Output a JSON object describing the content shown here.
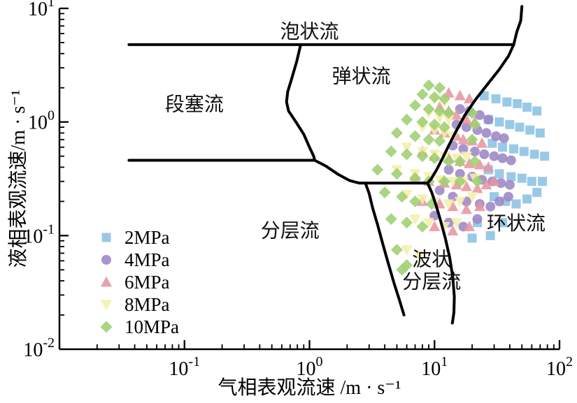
{
  "figure": {
    "background": "#ffffff"
  },
  "chart_data": {
    "type": "scatter",
    "title": "",
    "xlabel": "气相表观流速 /m · s⁻¹",
    "ylabel": "液相表观流速/m · s⁻¹",
    "x_scale": "log",
    "y_scale": "log",
    "xlim": [
      0.01,
      100
    ],
    "ylim": [
      0.01,
      10
    ],
    "x_ticks": [
      "10⁻¹",
      "10⁰",
      "10¹",
      "10²"
    ],
    "x_tick_values": [
      0.1,
      1,
      10,
      100
    ],
    "y_ticks": [
      "10⁻²",
      "10⁻¹",
      "10⁰",
      "10¹"
    ],
    "y_tick_values": [
      0.01,
      0.1,
      1,
      10
    ],
    "grid": false,
    "legend_position": "lower-left",
    "boundary_color": "#000000",
    "regions": [
      {
        "label": "泡状流",
        "x": 1.0,
        "y": 6.3
      },
      {
        "label": "弹状流",
        "x": 2.6,
        "y": 2.55
      },
      {
        "label": "段塞流",
        "x": 0.12,
        "y": 1.45
      },
      {
        "label": "分层流",
        "x": 0.7,
        "y": 0.112
      },
      {
        "label": "环状流",
        "x": 45,
        "y": 0.13
      },
      {
        "label": "波状\n分层流",
        "x": 9.5,
        "y": 0.05
      }
    ],
    "boundaries": [
      [
        [
          0.036,
          4.8
        ],
        [
          43,
          4.8
        ]
      ],
      [
        [
          50,
          10.4
        ],
        [
          49,
          7.8
        ],
        [
          45.5,
          6.2
        ],
        [
          43,
          4.8
        ],
        [
          39,
          3.8
        ],
        [
          33,
          2.9
        ],
        [
          27,
          2.2
        ],
        [
          21.5,
          1.6
        ],
        [
          17.5,
          1.15
        ],
        [
          14.8,
          0.82
        ],
        [
          13,
          0.62
        ],
        [
          11.6,
          0.48
        ],
        [
          10.4,
          0.38
        ],
        [
          9.4,
          0.315
        ],
        [
          8.8,
          0.29
        ]
      ],
      [
        [
          0.85,
          4.8
        ],
        [
          0.79,
          3.4
        ],
        [
          0.72,
          2.4
        ],
        [
          0.67,
          1.85
        ],
        [
          0.655,
          1.5
        ],
        [
          0.68,
          1.25
        ],
        [
          0.78,
          1.0
        ],
        [
          0.9,
          0.78
        ],
        [
          1.0,
          0.6
        ],
        [
          1.08,
          0.5
        ],
        [
          1.1,
          0.46
        ]
      ],
      [
        [
          0.036,
          0.46
        ],
        [
          1.1,
          0.46
        ]
      ],
      [
        [
          1.1,
          0.46
        ],
        [
          1.35,
          0.41
        ],
        [
          1.7,
          0.345
        ],
        [
          2.1,
          0.305
        ],
        [
          2.5,
          0.29
        ],
        [
          8.8,
          0.29
        ]
      ],
      [
        [
          2.8,
          0.29
        ],
        [
          3.0,
          0.235
        ],
        [
          3.2,
          0.175
        ],
        [
          3.5,
          0.125
        ],
        [
          3.85,
          0.085
        ],
        [
          4.25,
          0.058
        ],
        [
          4.75,
          0.038
        ],
        [
          5.3,
          0.026
        ],
        [
          5.7,
          0.02
        ]
      ],
      [
        [
          8.8,
          0.29
        ],
        [
          9.5,
          0.24
        ],
        [
          10.3,
          0.185
        ],
        [
          11.2,
          0.135
        ],
        [
          12.2,
          0.095
        ],
        [
          13.2,
          0.065
        ],
        [
          14.0,
          0.043
        ],
        [
          14.4,
          0.029
        ],
        [
          14.3,
          0.021
        ],
        [
          13.9,
          0.017
        ]
      ]
    ],
    "legend": [
      {
        "label": "2MPa",
        "marker": "square",
        "color": "#8CC1E5"
      },
      {
        "label": "4MPa",
        "marker": "circle",
        "color": "#9D86C6"
      },
      {
        "label": "6MPa",
        "marker": "triangle-up",
        "color": "#E795A1"
      },
      {
        "label": "8MPa",
        "marker": "triangle-down",
        "color": "#F4EFA8"
      },
      {
        "label": "10MPa",
        "marker": "diamond",
        "color": "#9ECF72"
      }
    ],
    "series": [
      {
        "name": "2MPa",
        "marker": "square",
        "color": "#8CC1E5",
        "points": [
          [
            25,
            1.7
          ],
          [
            31,
            1.6
          ],
          [
            38,
            1.5
          ],
          [
            46,
            1.45
          ],
          [
            55,
            1.35
          ],
          [
            66,
            1.25
          ],
          [
            27,
            1.05
          ],
          [
            33,
            1.0
          ],
          [
            40,
            0.95
          ],
          [
            48,
            0.9
          ],
          [
            58,
            0.85
          ],
          [
            70,
            0.8
          ],
          [
            29,
            0.65
          ],
          [
            35,
            0.6
          ],
          [
            43,
            0.58
          ],
          [
            52,
            0.55
          ],
          [
            63,
            0.52
          ],
          [
            76,
            0.5
          ],
          [
            27,
            0.38
          ],
          [
            33,
            0.35
          ],
          [
            41,
            0.33
          ],
          [
            50,
            0.32
          ],
          [
            60,
            0.3
          ],
          [
            73,
            0.3
          ],
          [
            30,
            0.22
          ],
          [
            37,
            0.2
          ],
          [
            45,
            0.19
          ],
          [
            55,
            0.21
          ],
          [
            66,
            0.24
          ],
          [
            22,
            0.13
          ],
          [
            28,
            0.1
          ],
          [
            35,
            0.13
          ],
          [
            20,
            0.095
          ]
        ]
      },
      {
        "name": "4MPa",
        "marker": "circle",
        "color": "#9D86C6",
        "points": [
          [
            16,
            1.3
          ],
          [
            19,
            1.25
          ],
          [
            23,
            1.15
          ],
          [
            27,
            1.05
          ],
          [
            15,
            0.95
          ],
          [
            18,
            0.9
          ],
          [
            22,
            0.85
          ],
          [
            26,
            0.8
          ],
          [
            31,
            0.75
          ],
          [
            36,
            0.72
          ],
          [
            14,
            0.62
          ],
          [
            17,
            0.58
          ],
          [
            21,
            0.55
          ],
          [
            25,
            0.52
          ],
          [
            30,
            0.5
          ],
          [
            35,
            0.48
          ],
          [
            41,
            0.46
          ],
          [
            13,
            0.38
          ],
          [
            16,
            0.35
          ],
          [
            20,
            0.33
          ],
          [
            24,
            0.31
          ],
          [
            29,
            0.3
          ],
          [
            34,
            0.29
          ],
          [
            40,
            0.28
          ],
          [
            11,
            0.25
          ],
          [
            14,
            0.22
          ],
          [
            18,
            0.2
          ],
          [
            23,
            0.19
          ],
          [
            28,
            0.18
          ],
          [
            33,
            0.2
          ],
          [
            39,
            0.22
          ],
          [
            10,
            0.15
          ],
          [
            13,
            0.13
          ],
          [
            17,
            0.12
          ],
          [
            22,
            0.14
          ]
        ]
      },
      {
        "name": "6MPa",
        "marker": "triangle-up",
        "color": "#E795A1",
        "points": [
          [
            13,
            1.8
          ],
          [
            16,
            1.7
          ],
          [
            19,
            1.6
          ],
          [
            11,
            1.35
          ],
          [
            13,
            1.25
          ],
          [
            15,
            1.15
          ],
          [
            18,
            1.05
          ],
          [
            21,
            1.0
          ],
          [
            10,
            0.85
          ],
          [
            12,
            0.8
          ],
          [
            15,
            0.75
          ],
          [
            17,
            0.7
          ],
          [
            20,
            0.68
          ],
          [
            24,
            0.65
          ],
          [
            8,
            0.55
          ],
          [
            10,
            0.5
          ],
          [
            13,
            0.48
          ],
          [
            16,
            0.45
          ],
          [
            19,
            0.43
          ],
          [
            23,
            0.42
          ],
          [
            27,
            0.4
          ],
          [
            7,
            0.33
          ],
          [
            9,
            0.3
          ],
          [
            12,
            0.29
          ],
          [
            15,
            0.28
          ],
          [
            18,
            0.27
          ],
          [
            22,
            0.26
          ],
          [
            26,
            0.28
          ],
          [
            30,
            0.3
          ],
          [
            8,
            0.2
          ],
          [
            11,
            0.19
          ],
          [
            14,
            0.18
          ],
          [
            18,
            0.17
          ],
          [
            23,
            0.18
          ],
          [
            10,
            0.12
          ],
          [
            14,
            0.11
          ],
          [
            19,
            0.12
          ]
        ]
      },
      {
        "name": "8MPa",
        "marker": "triangle-down",
        "color": "#F4EFA8",
        "points": [
          [
            10,
            1.6
          ],
          [
            12,
            1.5
          ],
          [
            9,
            1.2
          ],
          [
            11,
            1.1
          ],
          [
            13,
            1.05
          ],
          [
            8,
            0.9
          ],
          [
            10,
            0.85
          ],
          [
            12,
            0.8
          ],
          [
            14,
            0.75
          ],
          [
            6,
            0.6
          ],
          [
            8,
            0.55
          ],
          [
            10,
            0.52
          ],
          [
            12,
            0.5
          ],
          [
            15,
            0.48
          ],
          [
            18,
            0.5
          ],
          [
            5,
            0.38
          ],
          [
            7,
            0.35
          ],
          [
            9,
            0.33
          ],
          [
            11,
            0.31
          ],
          [
            14,
            0.3
          ],
          [
            17,
            0.3
          ],
          [
            21,
            0.32
          ],
          [
            6,
            0.23
          ],
          [
            8,
            0.21
          ],
          [
            10,
            0.2
          ],
          [
            13,
            0.19
          ],
          [
            16,
            0.2
          ],
          [
            20,
            0.22
          ],
          [
            7,
            0.14
          ],
          [
            9,
            0.13
          ],
          [
            12,
            0.12
          ],
          [
            15,
            0.13
          ],
          [
            6,
            0.075
          ],
          [
            7.5,
            0.068
          ]
        ]
      },
      {
        "name": "10MPa",
        "marker": "diamond",
        "color": "#9ECF72",
        "points": [
          [
            9,
            2.1
          ],
          [
            11,
            2.0
          ],
          [
            8,
            1.75
          ],
          [
            10,
            1.65
          ],
          [
            12,
            1.6
          ],
          [
            7,
            1.4
          ],
          [
            9,
            1.3
          ],
          [
            11,
            1.25
          ],
          [
            13,
            1.2
          ],
          [
            20,
            1.2
          ],
          [
            6,
            1.05
          ],
          [
            8,
            1.0
          ],
          [
            10,
            0.95
          ],
          [
            12,
            0.9
          ],
          [
            21,
            0.95
          ],
          [
            5,
            0.8
          ],
          [
            7,
            0.75
          ],
          [
            9,
            0.7
          ],
          [
            11,
            0.68
          ],
          [
            20,
            0.7
          ],
          [
            4.5,
            0.55
          ],
          [
            6,
            0.52
          ],
          [
            8,
            0.5
          ],
          [
            10,
            0.48
          ],
          [
            13,
            0.45
          ],
          [
            16,
            0.45
          ],
          [
            21,
            0.45
          ],
          [
            3.5,
            0.38
          ],
          [
            5,
            0.35
          ],
          [
            7,
            0.32
          ],
          [
            9,
            0.3
          ],
          [
            12,
            0.3
          ],
          [
            16,
            0.3
          ],
          [
            22,
            0.3
          ],
          [
            4,
            0.24
          ],
          [
            5.5,
            0.22
          ],
          [
            7,
            0.2
          ],
          [
            9.5,
            0.19
          ],
          [
            4.5,
            0.14
          ],
          [
            6,
            0.13
          ],
          [
            8,
            0.12
          ],
          [
            5,
            0.075
          ],
          [
            6,
            0.055
          ],
          [
            5.5,
            0.05
          ]
        ]
      }
    ]
  }
}
